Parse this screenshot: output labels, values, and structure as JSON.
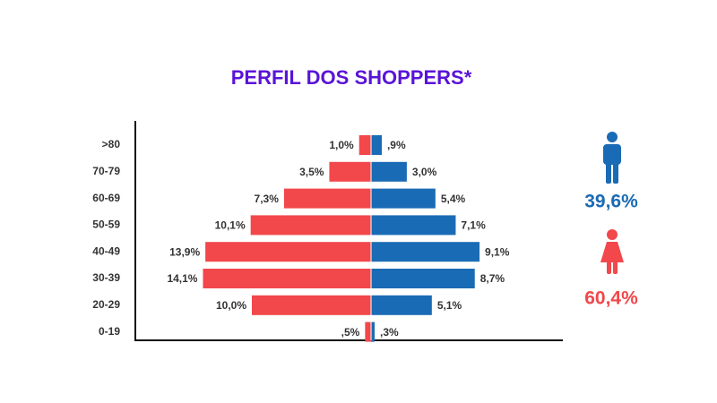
{
  "chart_data": {
    "type": "pyramid",
    "title": "PERFIL DOS SHOPPERS*",
    "categories": [
      ">80",
      "70-79",
      "60-69",
      "50-59",
      "40-49",
      "30-39",
      "20-29",
      "0-19"
    ],
    "series": [
      {
        "color": "#f2474b",
        "side": "left",
        "values": [
          1.0,
          3.5,
          7.3,
          10.1,
          13.9,
          14.1,
          10.0,
          0.5
        ],
        "value_labels": [
          "1,0%",
          "3,5%",
          "7,3%",
          "10,1%",
          "13,9%",
          "14,1%",
          "10,0%",
          ",5%"
        ],
        "total": 60.4,
        "total_label": "60,4%"
      },
      {
        "color": "#1a6bb5",
        "side": "right",
        "values": [
          0.9,
          3.0,
          5.4,
          7.1,
          9.1,
          8.7,
          5.1,
          0.3
        ],
        "value_labels": [
          ",9%",
          "3,0%",
          "5,4%",
          "7,1%",
          "9,1%",
          "8,7%",
          "5,1%",
          ",3%"
        ],
        "total": 39.6,
        "total_label": "39,6%"
      }
    ]
  }
}
